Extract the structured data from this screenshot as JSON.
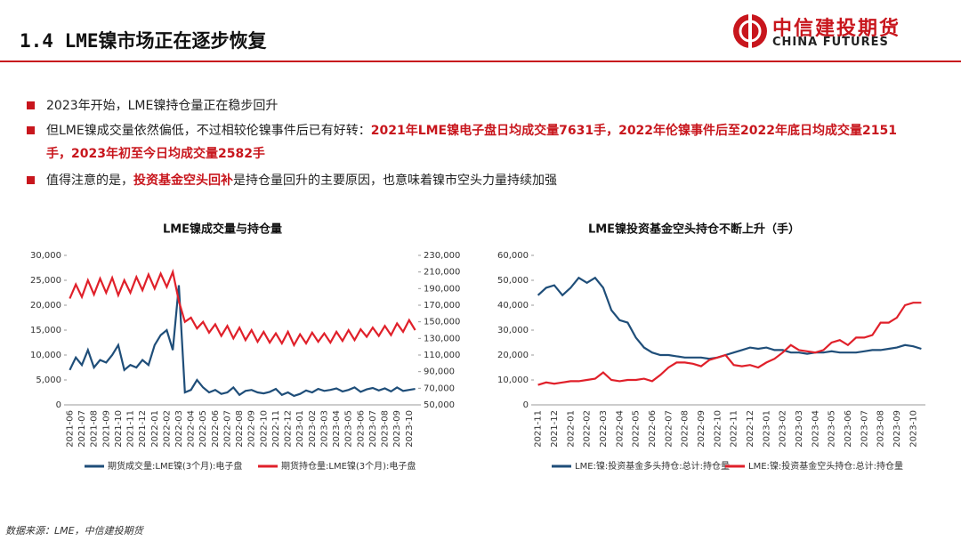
{
  "header": {
    "title": "1.4 LME镍市场正在逐步恢复",
    "logo_cn": "中信建投期货",
    "logo_en": "CHINA FUTURES"
  },
  "bullets": [
    [
      {
        "text": "2023年开始，LME镍持仓量正在稳步回升",
        "highlight": false
      }
    ],
    [
      {
        "text": "但LME镍成交量依然偏低，不过相较伦镍事件后已有好转：",
        "highlight": false
      },
      {
        "text": "2021年LME镍电子盘日均成交量7631手，2022年伦镍事件后至2022年底日均成交量2151手，2023年初至今日均成交量2582手",
        "highlight": true
      }
    ],
    [
      {
        "text": "值得注意的是，",
        "highlight": false
      },
      {
        "text": "投资基金空头回补",
        "highlight": true
      },
      {
        "text": "是持仓量回升的主要原因，也意味着镍市空头力量持续加强",
        "highlight": false
      }
    ]
  ],
  "footer": "数据来源：LME，中信建投期货",
  "chart_data": [
    {
      "type": "line",
      "title": "LME镍成交量与持仓量",
      "categories": [
        "2021-06",
        null,
        "2021-07",
        null,
        "2021-08",
        null,
        "2021-09",
        null,
        "2021-10",
        null,
        "2021-11",
        null,
        "2021-12",
        null,
        "2022-01",
        null,
        "2022-02",
        null,
        "2022-03",
        null,
        "2022-04",
        null,
        "2022-05",
        null,
        "2022-06",
        null,
        "2022-07",
        null,
        "2022-08",
        null,
        "2022-09",
        null,
        "2022-10",
        null,
        "2022-11",
        null,
        "2022-12",
        null,
        "2023-01",
        null,
        "2023-02",
        null,
        "2023-03",
        null,
        "2023-04",
        null,
        "2023-05",
        null,
        "2023-06",
        null,
        "2023-07",
        null,
        "2023-08",
        null,
        "2023-09",
        null,
        "2023-10",
        null
      ],
      "series": [
        {
          "name": "期货成交量:LME镍(3个月):电子盘",
          "color": "#1f4e79",
          "values": [
            7000,
            9500,
            8000,
            11000,
            7500,
            9000,
            8500,
            10000,
            12000,
            7000,
            8000,
            7500,
            9000,
            8000,
            12000,
            14000,
            15000,
            11000,
            24000,
            2500,
            3000,
            5000,
            3500,
            2500,
            3000,
            2200,
            2500,
            3500,
            2000,
            2800,
            3000,
            2500,
            2300,
            2600,
            3200,
            2000,
            2500,
            1800,
            2200,
            2900,
            2500,
            3200,
            2800,
            3000,
            3300,
            2700,
            3000,
            3500,
            2600,
            3100,
            3400,
            2900,
            3300,
            2700,
            3500,
            2800,
            3000,
            3200
          ]
        },
        {
          "name": "期货持仓量:LME镍(3个月):电子盘",
          "color": "#e0202a",
          "axis": "y2",
          "values": [
            178000,
            195000,
            180000,
            200000,
            183000,
            202000,
            185000,
            203000,
            182000,
            200000,
            185000,
            204000,
            188000,
            207000,
            190000,
            208000,
            192000,
            210000,
            175000,
            150000,
            155000,
            142000,
            150000,
            137000,
            147000,
            133000,
            145000,
            130000,
            143000,
            128000,
            140000,
            126000,
            138000,
            125000,
            136000,
            124000,
            138000,
            122000,
            135000,
            124000,
            137000,
            126000,
            136000,
            125000,
            138000,
            127000,
            140000,
            128000,
            141000,
            132000,
            143000,
            133000,
            145000,
            134000,
            148000,
            138000,
            152000,
            140000
          ]
        }
      ],
      "ylim": [
        0,
        30000
      ],
      "yticks": [
        0,
        {
          "value": 5000,
          "label": "5,000"
        },
        {
          "value": 10000,
          "label": "10,000"
        },
        {
          "value": 15000,
          "label": "15,000"
        },
        {
          "value": 20000,
          "label": "20,000"
        },
        {
          "value": 25000,
          "label": "25,000"
        },
        {
          "value": 30000,
          "label": "30,000"
        }
      ],
      "y2lim": [
        50000,
        230000
      ],
      "y2ticks": [
        {
          "value": 50000,
          "label": "50,000"
        },
        {
          "value": 70000,
          "label": "70,000"
        },
        {
          "value": 90000,
          "label": "90,000"
        },
        {
          "value": 110000,
          "label": "110,000"
        },
        {
          "value": 130000,
          "label": "130,000"
        },
        {
          "value": 150000,
          "label": "150,000"
        },
        {
          "value": 170000,
          "label": "170,000"
        },
        {
          "value": 190000,
          "label": "190,000"
        },
        {
          "value": 210000,
          "label": "210,000"
        },
        {
          "value": 230000,
          "label": "230,000"
        }
      ]
    },
    {
      "type": "line",
      "title": "LME镍投资基金空头持仓不断上升（手）",
      "categories": [
        "2021-11",
        null,
        "2021-12",
        null,
        "2022-01",
        null,
        "2022-02",
        null,
        "2022-03",
        null,
        "2022-04",
        null,
        "2022-05",
        null,
        "2022-06",
        null,
        "2022-07",
        null,
        "2022-08",
        null,
        "2022-09",
        null,
        "2022-10",
        null,
        "2022-11",
        null,
        "2022-12",
        null,
        "2023-01",
        null,
        "2023-02",
        null,
        "2023-03",
        null,
        "2023-04",
        null,
        "2023-05",
        null,
        "2023-06",
        null,
        "2023-07",
        null,
        "2023-08",
        null,
        "2023-09",
        null,
        "2023-10",
        null
      ],
      "series": [
        {
          "name": "LME:镍:投资基金多头持仓:总计:持仓量",
          "color": "#1f4e79",
          "values": [
            44000,
            47000,
            48000,
            44000,
            47000,
            51000,
            49000,
            51000,
            47000,
            38000,
            34000,
            33000,
            27000,
            23000,
            21000,
            20000,
            20000,
            19500,
            19000,
            19000,
            19000,
            18500,
            19000,
            20000,
            21000,
            22000,
            23000,
            22500,
            23000,
            22000,
            22000,
            21000,
            21000,
            20500,
            21000,
            21000,
            21500,
            21000,
            21000,
            21000,
            21500,
            22000,
            22000,
            22500,
            23000,
            24000,
            23500,
            22500
          ]
        },
        {
          "name": "LME:镍:投资基金空头持仓:总计:持仓量",
          "color": "#e0202a",
          "values": [
            8000,
            9000,
            8500,
            9000,
            9500,
            9500,
            10000,
            10500,
            13000,
            10000,
            9500,
            10000,
            10000,
            10500,
            9500,
            12000,
            15000,
            17000,
            17000,
            16500,
            15500,
            18000,
            19000,
            20000,
            16000,
            15500,
            16000,
            15000,
            17000,
            18500,
            21000,
            24000,
            22000,
            21500,
            21000,
            22000,
            25000,
            26000,
            24000,
            27000,
            27000,
            28000,
            33000,
            33000,
            35000,
            40000,
            41000,
            41000
          ]
        }
      ],
      "ylim": [
        0,
        60000
      ],
      "yticks": [
        0,
        {
          "value": 10000,
          "label": "10,000"
        },
        {
          "value": 20000,
          "label": "20,000"
        },
        {
          "value": 30000,
          "label": "30,000"
        },
        {
          "value": 40000,
          "label": "40,000"
        },
        {
          "value": 50000,
          "label": "50,000"
        },
        {
          "value": 60000,
          "label": "60,000"
        }
      ]
    }
  ]
}
